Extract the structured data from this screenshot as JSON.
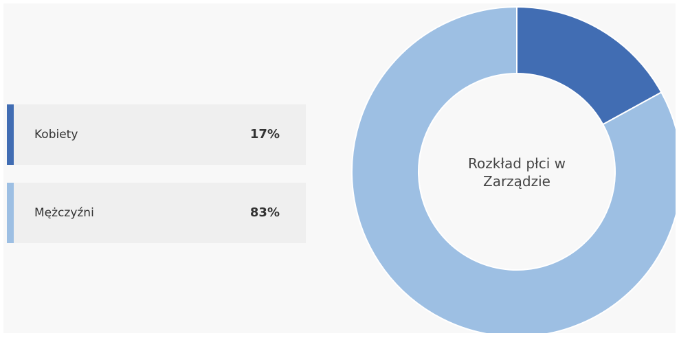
{
  "chart_data": {
    "type": "donut",
    "title": "Rozkład płci w Zarządzie",
    "categories": [
      "Kobiety",
      "Mężczyźni"
    ],
    "values": [
      17,
      83
    ],
    "value_labels": [
      "17%",
      "83%"
    ],
    "colors": [
      "#416db3",
      "#9dbfe3"
    ]
  }
}
